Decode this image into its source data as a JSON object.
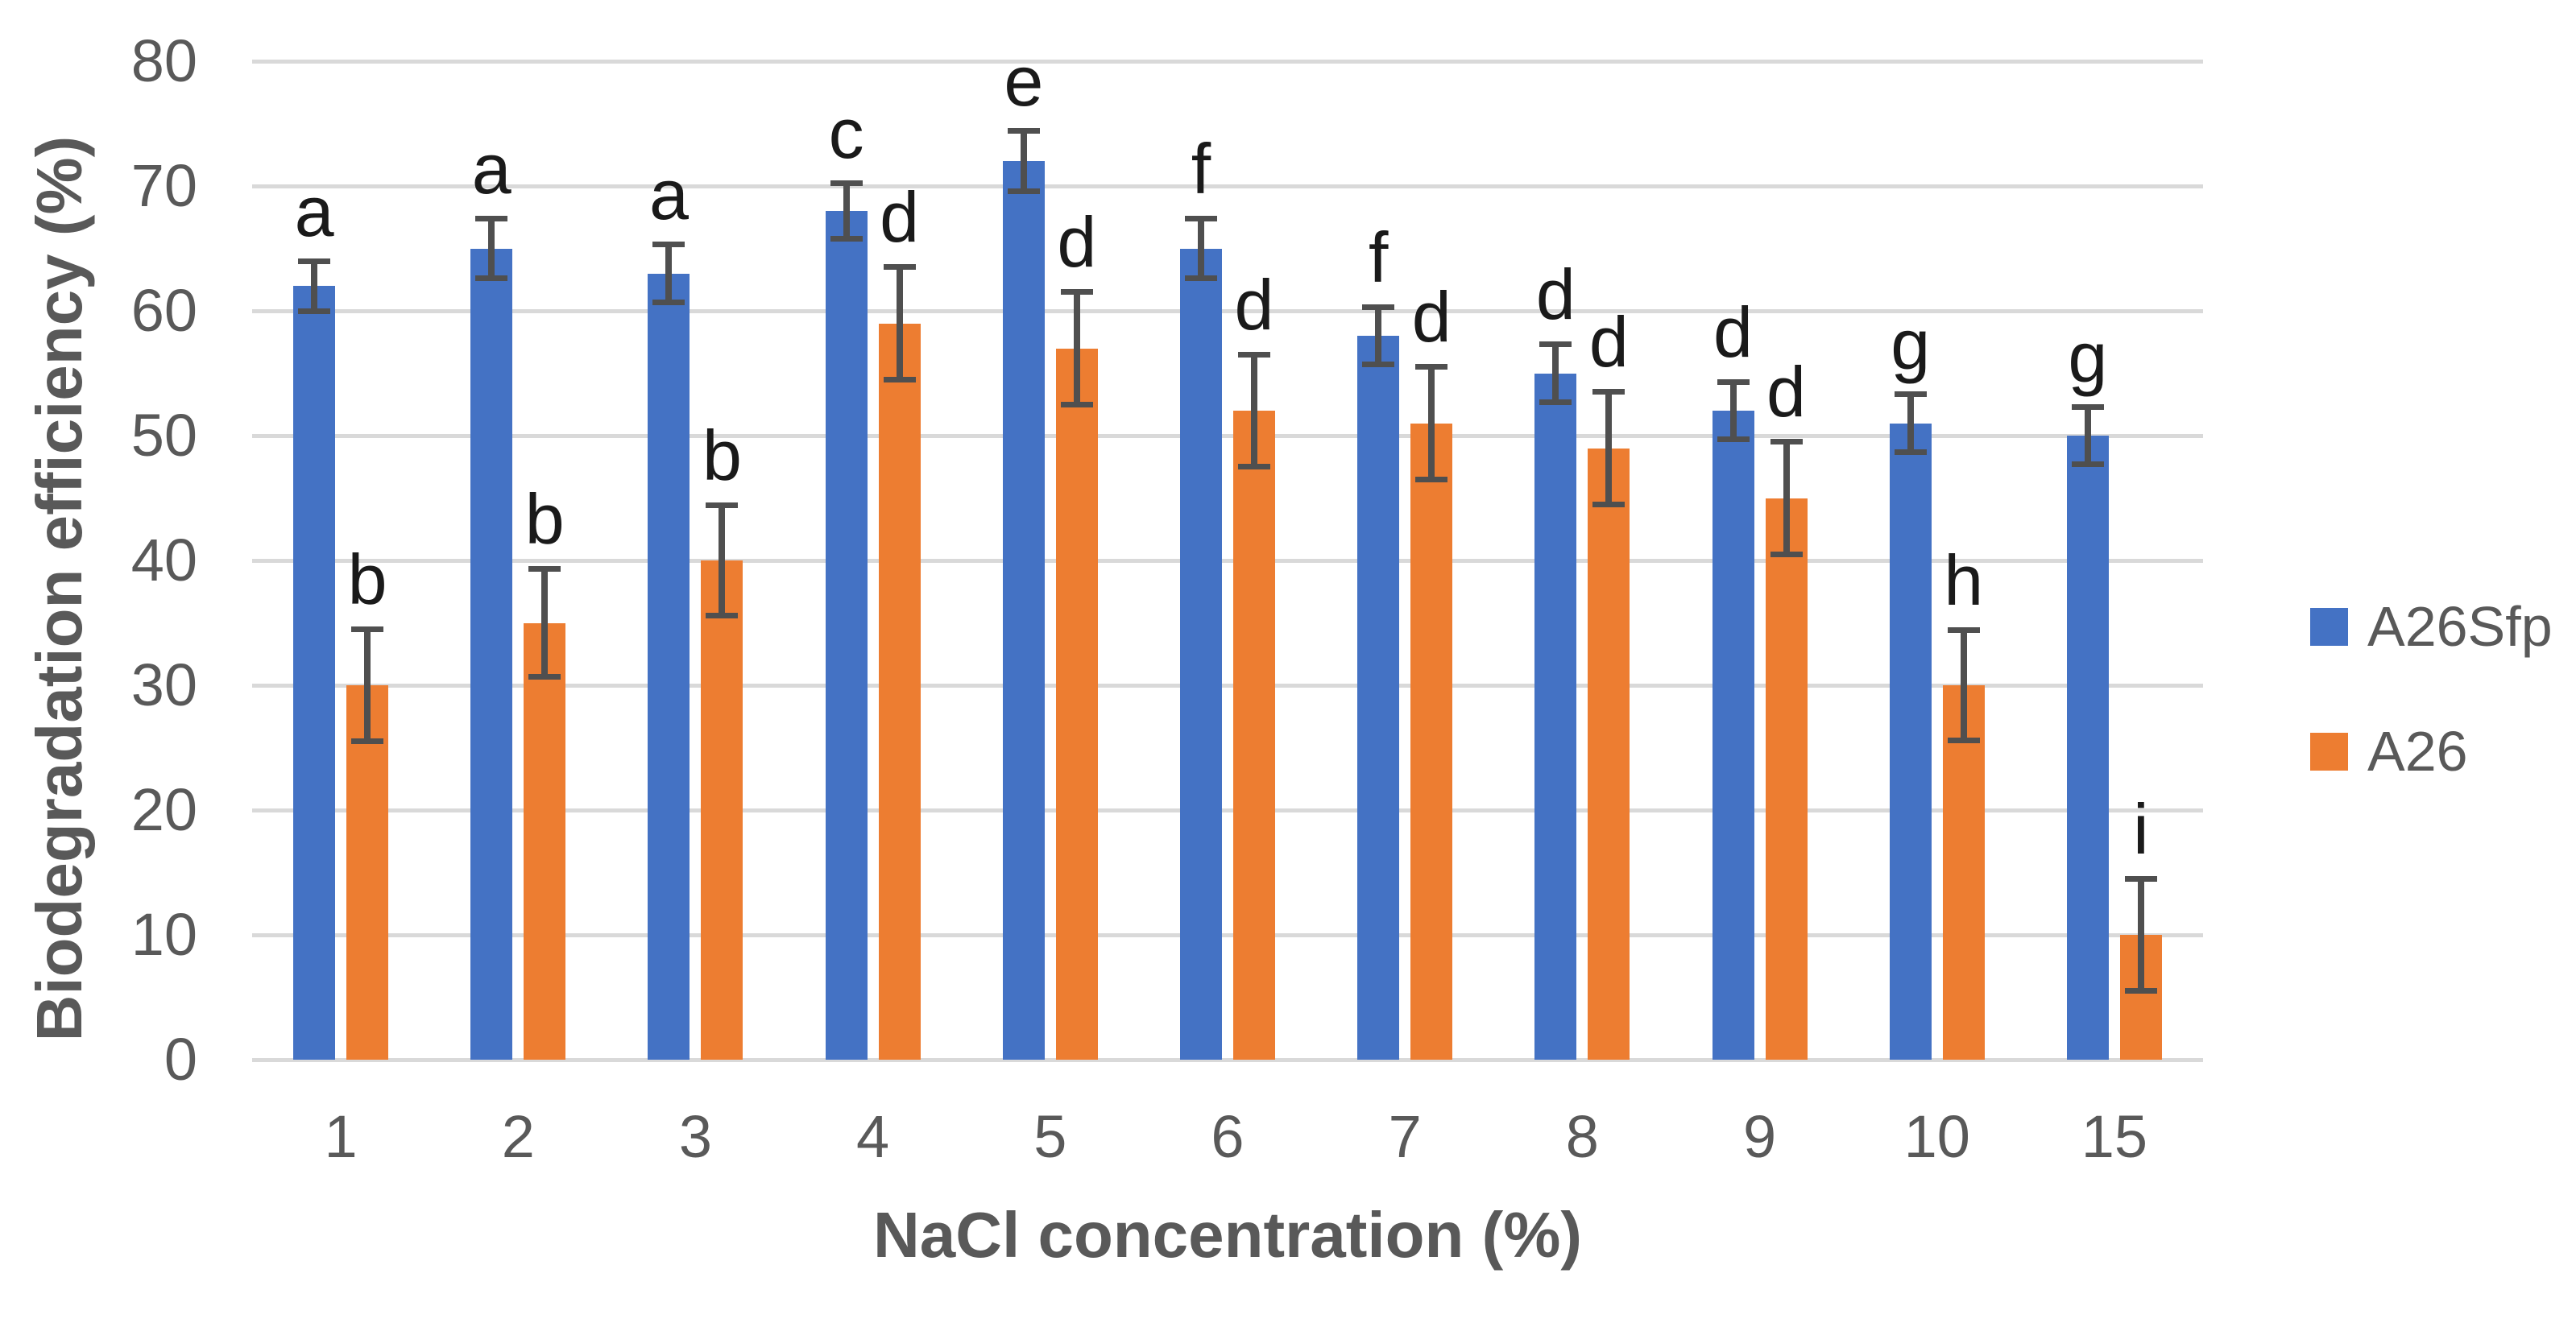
{
  "chart_data": {
    "type": "bar",
    "title": "",
    "xlabel": "NaCl concentration (%)",
    "ylabel": "Biodegradation efficiency (%)",
    "categories": [
      "1",
      "2",
      "3",
      "4",
      "5",
      "6",
      "7",
      "8",
      "9",
      "10",
      "15"
    ],
    "y_axis": {
      "min": 0,
      "max": 80,
      "tick_step": 10,
      "tick_labels": [
        "0",
        "10",
        "20",
        "30",
        "40",
        "50",
        "60",
        "70",
        "80"
      ]
    },
    "grid": true,
    "legend_position": "right",
    "series": [
      {
        "name": "A26Sfp",
        "color": "#4472C4",
        "values": [
          62,
          65,
          63,
          68,
          72,
          65,
          58,
          55,
          52,
          51,
          50
        ],
        "errors": [
          2.0,
          2.4,
          2.3,
          2.2,
          2.4,
          2.4,
          2.3,
          2.3,
          2.3,
          2.3,
          2.3
        ],
        "letters": [
          "a",
          "a",
          "a",
          "c",
          "e",
          "f",
          "f",
          "d",
          "d",
          "g",
          "g"
        ]
      },
      {
        "name": "A26",
        "color": "#ED7D31",
        "values": [
          30,
          35,
          40,
          59,
          57,
          52,
          51,
          49,
          45,
          30,
          10
        ],
        "errors": [
          4.5,
          4.3,
          4.4,
          4.5,
          4.5,
          4.5,
          4.5,
          4.5,
          4.5,
          4.4,
          4.5
        ],
        "letters": [
          "b",
          "b",
          "b",
          "d",
          "d",
          "d",
          "d",
          "d",
          "d",
          "h",
          "i"
        ]
      }
    ],
    "colors": {
      "gridline": "#D9D9D9",
      "error_bar": "#4F4F4F",
      "axis_text": "#595959",
      "letter_text": "#1A1A1A",
      "background": "#FFFFFF"
    }
  }
}
